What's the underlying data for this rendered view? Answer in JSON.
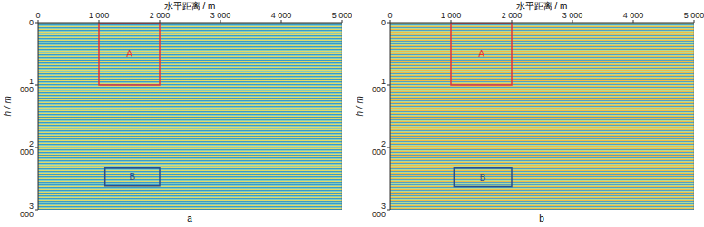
{
  "chart_data": [
    {
      "type": "image",
      "title": "a",
      "x_label": "水平距离 / m",
      "y_label": "h / m",
      "xlim": [
        0,
        5000
      ],
      "xticks": [
        0,
        {
          "value": 1000,
          "label": "1 000"
        },
        {
          "value": 2000,
          "label": "2 000"
        },
        {
          "value": 3000,
          "label": "3 000"
        },
        {
          "value": 4000,
          "label": "4 000"
        },
        {
          "value": 5000,
          "label": "5 000"
        }
      ],
      "ylim": [
        0,
        3000
      ],
      "yticks": [
        0,
        {
          "value": 1000,
          "label": "1 000"
        },
        {
          "value": 2000,
          "label": "2 000"
        },
        {
          "value": 3000,
          "label": "3 000"
        }
      ],
      "boxes": [
        {
          "label": "A",
          "x": [
            1000,
            2000
          ],
          "y": [
            0,
            1000
          ],
          "color": "#e0343c"
        },
        {
          "label": "B",
          "x": [
            1100,
            2000
          ],
          "y": [
            2330,
            2620
          ],
          "color": "#2b4d8a"
        }
      ]
    },
    {
      "type": "image",
      "title": "b",
      "x_label": "水平距离 / m",
      "y_label": "h / m",
      "xlim": [
        0,
        5000
      ],
      "xticks": [
        0,
        {
          "value": 1000,
          "label": "1 000"
        },
        {
          "value": 2000,
          "label": "2 000"
        },
        {
          "value": 3000,
          "label": "3 000"
        },
        {
          "value": 4000,
          "label": "4 000"
        },
        {
          "value": 5000,
          "label": "5 000"
        }
      ],
      "ylim": [
        0,
        3000
      ],
      "yticks": [
        0,
        {
          "value": 1000,
          "label": "1 000"
        },
        {
          "value": 2000,
          "label": "2 000"
        },
        {
          "value": 3000,
          "label": "3 000"
        }
      ],
      "boxes": [
        {
          "label": "A",
          "x": [
            1000,
            2000
          ],
          "y": [
            0,
            1000
          ],
          "color": "#e0343c"
        },
        {
          "label": "B",
          "x": [
            1050,
            2000
          ],
          "y": [
            2330,
            2630
          ],
          "color": "#2b4d8a"
        }
      ]
    }
  ]
}
